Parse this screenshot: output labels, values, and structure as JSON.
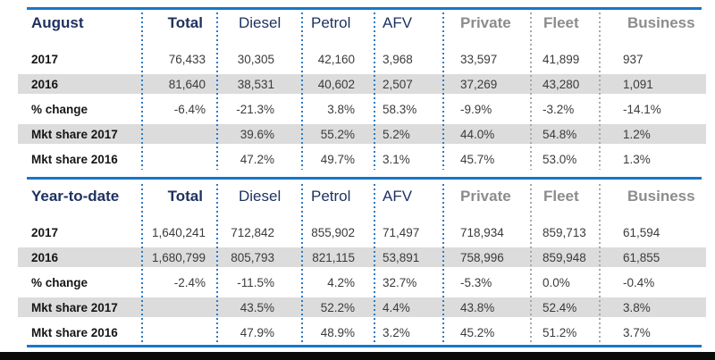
{
  "colors": {
    "accent_blue": "#1877C9",
    "separator_blue": "#2F7AC2",
    "separator_gray": "#A8A8A8",
    "navy_header": "#1E3260",
    "gray_header": "#8C8C8C",
    "zebra_row": "#DCDCDC"
  },
  "columns": [
    "Total",
    "Diesel",
    "Petrol",
    "AFV",
    "Private",
    "Fleet",
    "Business"
  ],
  "sections": [
    {
      "title": "August",
      "rows": [
        {
          "label": "2017",
          "values": [
            "76,433",
            "30,305",
            "42,160",
            "3,968",
            "33,597",
            "41,899",
            "937"
          ]
        },
        {
          "label": "2016",
          "values": [
            "81,640",
            "38,531",
            "40,602",
            "2,507",
            "37,269",
            "43,280",
            "1,091"
          ]
        },
        {
          "label": "% change",
          "values": [
            "-6.4%",
            "-21.3%",
            "3.8%",
            "58.3%",
            "-9.9%",
            "-3.2%",
            "-14.1%"
          ]
        },
        {
          "label": "Mkt share 2017",
          "values": [
            "",
            "39.6%",
            "55.2%",
            "5.2%",
            "44.0%",
            "54.8%",
            "1.2%"
          ]
        },
        {
          "label": "Mkt share 2016",
          "values": [
            "",
            "47.2%",
            "49.7%",
            "3.1%",
            "45.7%",
            "53.0%",
            "1.3%"
          ]
        }
      ]
    },
    {
      "title": "Year-to-date",
      "rows": [
        {
          "label": "2017",
          "values": [
            "1,640,241",
            "712,842",
            "855,902",
            "71,497",
            "718,934",
            "859,713",
            "61,594"
          ]
        },
        {
          "label": "2016",
          "values": [
            "1,680,799",
            "805,793",
            "821,115",
            "53,891",
            "758,996",
            "859,948",
            "61,855"
          ]
        },
        {
          "label": "% change",
          "values": [
            "-2.4%",
            "-11.5%",
            "4.2%",
            "32.7%",
            "-5.3%",
            "0.0%",
            "-0.4%"
          ]
        },
        {
          "label": "Mkt share 2017",
          "values": [
            "",
            "43.5%",
            "52.2%",
            "4.4%",
            "43.8%",
            "52.4%",
            "3.8%"
          ]
        },
        {
          "label": "Mkt share 2016",
          "values": [
            "",
            "47.9%",
            "48.9%",
            "3.2%",
            "45.2%",
            "51.2%",
            "3.7%"
          ]
        }
      ]
    }
  ],
  "chart_data": {
    "type": "table",
    "columns": [
      "Total",
      "Diesel",
      "Petrol",
      "AFV",
      "Private",
      "Fleet",
      "Business"
    ],
    "tables": [
      {
        "title": "August",
        "row_labels": [
          "2017",
          "2016",
          "% change",
          "Mkt share 2017",
          "Mkt share 2016"
        ],
        "rows": [
          [
            "76,433",
            "30,305",
            "42,160",
            "3,968",
            "33,597",
            "41,899",
            "937"
          ],
          [
            "81,640",
            "38,531",
            "40,602",
            "2,507",
            "37,269",
            "43,280",
            "1,091"
          ],
          [
            "-6.4%",
            "-21.3%",
            "3.8%",
            "58.3%",
            "-9.9%",
            "-3.2%",
            "-14.1%"
          ],
          [
            "",
            "39.6%",
            "55.2%",
            "5.2%",
            "44.0%",
            "54.8%",
            "1.2%"
          ],
          [
            "",
            "47.2%",
            "49.7%",
            "3.1%",
            "45.7%",
            "53.0%",
            "1.3%"
          ]
        ]
      },
      {
        "title": "Year-to-date",
        "row_labels": [
          "2017",
          "2016",
          "% change",
          "Mkt share 2017",
          "Mkt share 2016"
        ],
        "rows": [
          [
            "1,640,241",
            "712,842",
            "855,902",
            "71,497",
            "718,934",
            "859,713",
            "61,594"
          ],
          [
            "1,680,799",
            "805,793",
            "821,115",
            "53,891",
            "758,996",
            "859,948",
            "61,855"
          ],
          [
            "-2.4%",
            "-11.5%",
            "4.2%",
            "32.7%",
            "-5.3%",
            "0.0%",
            "-0.4%"
          ],
          [
            "",
            "43.5%",
            "52.2%",
            "4.4%",
            "43.8%",
            "52.4%",
            "3.8%"
          ],
          [
            "",
            "47.9%",
            "48.9%",
            "3.2%",
            "45.2%",
            "51.2%",
            "3.7%"
          ]
        ]
      }
    ]
  }
}
